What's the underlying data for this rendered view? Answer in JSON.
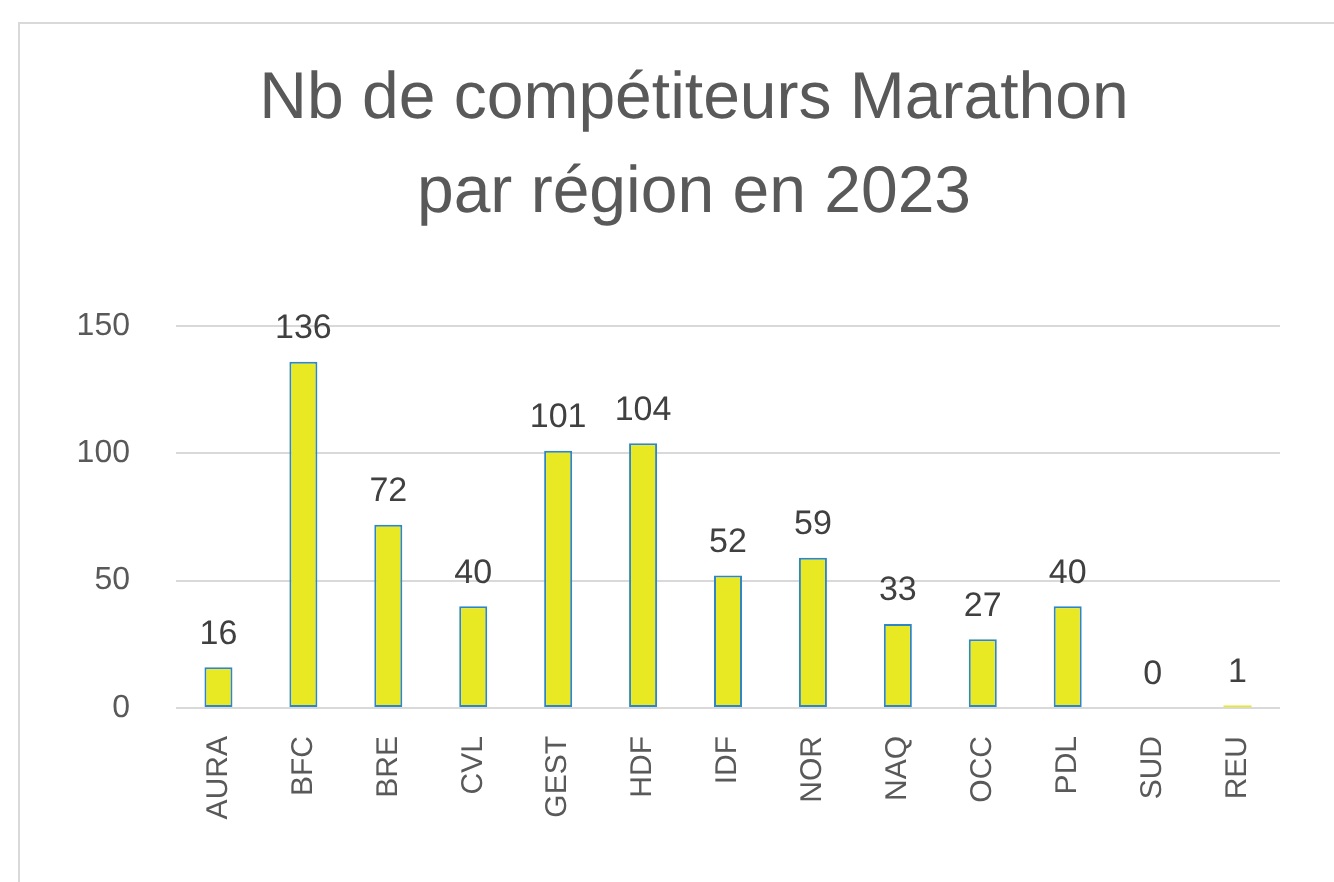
{
  "chart_data": {
    "type": "bar",
    "title": "Nb de compétiteurs Marathon par région en 2023",
    "categories": [
      "AURA",
      "BFC",
      "BRE",
      "CVL",
      "GEST",
      "HDF",
      "IDF",
      "NOR",
      "NAQ",
      "OCC",
      "PDL",
      "SUD",
      "REU"
    ],
    "values": [
      16,
      136,
      72,
      40,
      101,
      104,
      52,
      59,
      33,
      27,
      40,
      0,
      1
    ],
    "color": "#e9e923",
    "ylim": [
      0,
      150
    ],
    "yticks": [
      0,
      50,
      100,
      150
    ],
    "grid": "y",
    "data_labels": true
  }
}
